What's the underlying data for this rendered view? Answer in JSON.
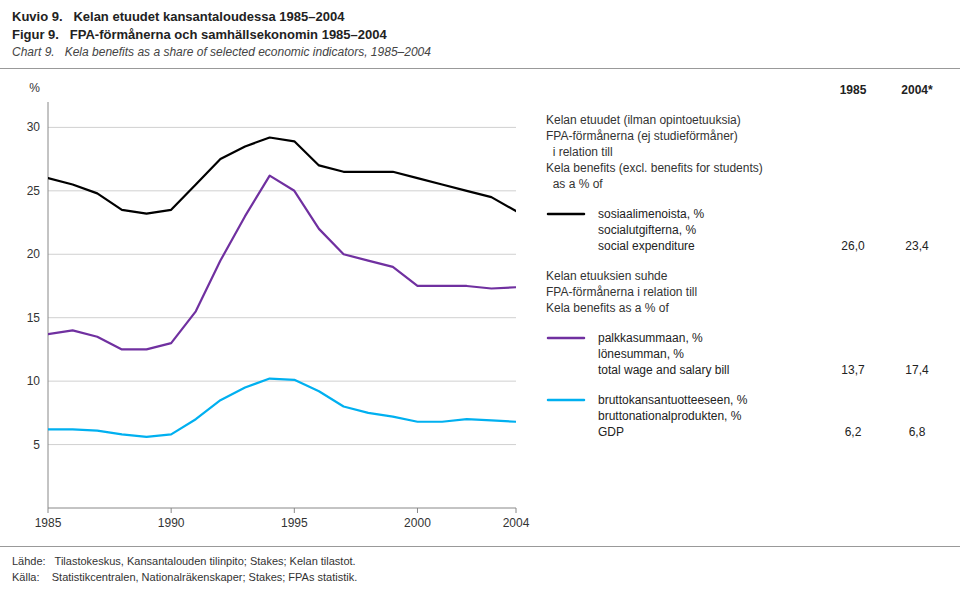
{
  "chart_data": {
    "type": "line",
    "title": "Kuvio 9.   Kelan etuudet kansantaloudessa 1985–2004\nFigur 9.   FPA-förmånerna och samhällsekonomin 1985–2004",
    "subtitle": "Chart 9.   Kela benefits as a share of selected economic indicators, 1985–2004",
    "ylabel": "%",
    "x": [
      1985,
      1986,
      1987,
      1988,
      1989,
      1990,
      1991,
      1992,
      1993,
      1994,
      1995,
      1996,
      1997,
      1998,
      1999,
      2000,
      2001,
      2002,
      2003,
      2004
    ],
    "xlim": [
      1985,
      2004
    ],
    "xticks": [
      1985,
      1990,
      1995,
      2000,
      2004
    ],
    "ylim": [
      0,
      32
    ],
    "yticks": [
      5,
      10,
      15,
      20,
      25,
      30
    ],
    "grid": true,
    "legend": "right",
    "series": [
      {
        "name": "sosiaalimenoista, %\nsocialutgifterna, %\nsocial expenditure",
        "color": "#000000",
        "values": [
          26.0,
          25.5,
          24.8,
          23.5,
          23.2,
          23.5,
          25.5,
          27.5,
          28.5,
          29.2,
          28.9,
          27.0,
          26.5,
          26.5,
          26.5,
          26.0,
          25.5,
          25.0,
          24.5,
          23.4
        ],
        "value_labels": [
          "26,0",
          null,
          null,
          null,
          null,
          null,
          null,
          null,
          null,
          null,
          null,
          null,
          null,
          null,
          null,
          null,
          null,
          null,
          null,
          "23,4"
        ]
      },
      {
        "name": "palkkasummaan, %\nlönesumman, %\ntotal wage and salary bill",
        "color": "#7030A0",
        "values": [
          13.7,
          14.0,
          13.5,
          12.5,
          12.5,
          13.0,
          15.5,
          19.5,
          23.0,
          26.2,
          25.0,
          22.0,
          20.0,
          19.5,
          19.0,
          17.5,
          17.5,
          17.5,
          17.3,
          17.4
        ],
        "value_labels": [
          "13,7",
          null,
          null,
          null,
          null,
          null,
          null,
          null,
          null,
          null,
          null,
          null,
          null,
          null,
          null,
          null,
          null,
          null,
          null,
          "17,4"
        ]
      },
      {
        "name": "bruttokansantuotteeseen, %\nbruttonationalprodukten, %\nGDP",
        "color": "#00B0F0",
        "values": [
          6.2,
          6.2,
          6.1,
          5.8,
          5.6,
          5.8,
          7.0,
          8.5,
          9.5,
          10.2,
          10.1,
          9.2,
          8.0,
          7.5,
          7.2,
          6.8,
          6.8,
          7.0,
          6.9,
          6.8
        ],
        "value_labels": [
          "6,2",
          null,
          null,
          null,
          null,
          null,
          null,
          null,
          null,
          null,
          null,
          null,
          null,
          null,
          null,
          null,
          null,
          null,
          null,
          "6,8"
        ]
      }
    ],
    "annotations": [
      "Kelan etuudet (ilman opintoetuuksia)\nFPA-förmånerna (ej studieförmåner)\n  i relation till\nKela benefits (excl. benefits for students)\n  as a % of",
      "Kelan etuuksien suhde\nFPA-förmånerna i relation till\nKela benefits as a % of",
      "1985",
      "2004*",
      "Lähde:   Tilastokeskus, Kansantalouden tilinpito; Stakes; Kelan tilastot.",
      "Källa:    Statistikcentralen, Nationalräkenskaper; Stakes; FPAs statistik."
    ]
  }
}
